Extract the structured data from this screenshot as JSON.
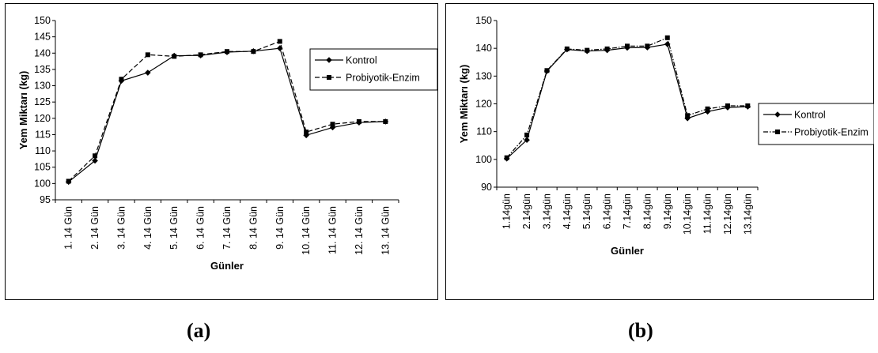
{
  "chart_data": [
    {
      "type": "line",
      "panel_label": "(a)",
      "categories": [
        "1. 14 Gün",
        "2. 14 Gün",
        "3. 14 Gün",
        "4. 14 Gün",
        "5. 14 Gün",
        "6. 14 Gün",
        "7. 14 Gün",
        "8. 14 Gün",
        "9. 14 Gün",
        "10. 14 Gün",
        "11. 14 Gün",
        "12. 14 Gün",
        "13. 14 Gün"
      ],
      "series": [
        {
          "name": "Kontrol",
          "values": [
            100.5,
            107.0,
            131.5,
            134.0,
            139.2,
            139.3,
            140.3,
            140.6,
            141.5,
            114.8,
            117.2,
            118.7,
            119.0
          ],
          "marker": "diamond",
          "line": "solid"
        },
        {
          "name": "Probiyotik-Enzim",
          "values": [
            100.7,
            108.5,
            132.0,
            139.5,
            139.0,
            139.5,
            140.5,
            140.5,
            143.6,
            115.8,
            118.2,
            119.0,
            119.0
          ],
          "marker": "square",
          "line": "dashed"
        }
      ],
      "xlabel": "Günler",
      "ylabel": "Yem Miktarı (kg)",
      "ylim": [
        95,
        150
      ],
      "yticks": [
        95,
        100,
        105,
        110,
        115,
        120,
        125,
        130,
        135,
        140,
        145,
        150
      ],
      "grid": false,
      "legend": "right"
    },
    {
      "type": "line",
      "panel_label": "(b)",
      "categories": [
        "1.14gün",
        "2.14gün",
        "3.14gün",
        "4.14gün",
        "5.14gün",
        "6.14gün",
        "7.14gün",
        "8.14gün",
        "9.14gün",
        "10.14gün",
        "11.14gün",
        "12.14gün",
        "13.14gün"
      ],
      "series": [
        {
          "name": "Kontrol",
          "values": [
            100.3,
            107.0,
            131.8,
            139.6,
            139.0,
            139.3,
            140.2,
            140.3,
            141.5,
            114.8,
            117.2,
            118.7,
            119.0
          ],
          "marker": "diamond",
          "line": "solid"
        },
        {
          "name": "Probiyotik-Enzim",
          "values": [
            100.6,
            108.8,
            132.0,
            139.8,
            139.3,
            139.8,
            140.8,
            140.8,
            143.8,
            115.8,
            118.2,
            119.3,
            119.3
          ],
          "marker": "square",
          "line": "dashdot"
        }
      ],
      "xlabel": "Günler",
      "ylabel": "Yem Miktarı (kg)",
      "ylim": [
        90,
        150
      ],
      "yticks": [
        90,
        100,
        110,
        120,
        130,
        140,
        150
      ],
      "grid": false,
      "legend": "right"
    }
  ]
}
